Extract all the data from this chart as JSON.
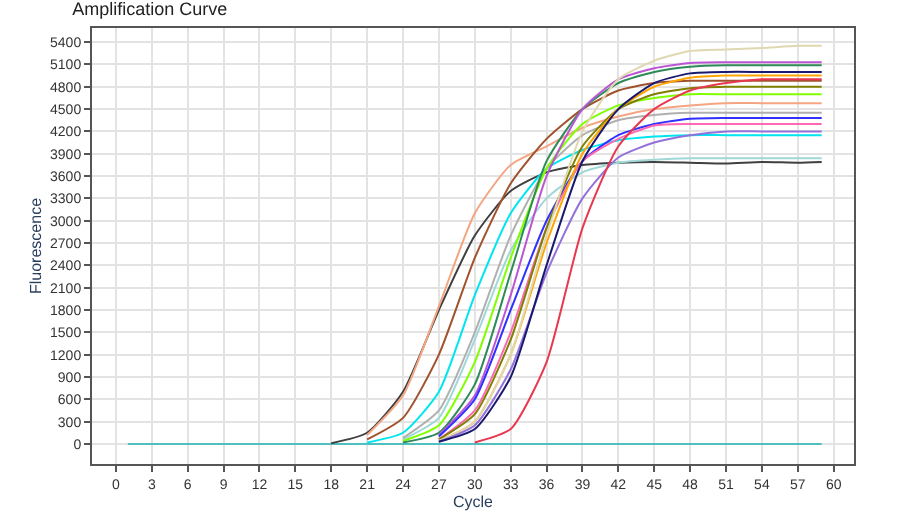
{
  "chart_data": {
    "type": "line",
    "title": "Amplification Curve",
    "xlabel": "Cycle",
    "ylabel": "Fluorescence",
    "x": [
      1,
      15,
      18,
      21,
      24,
      27,
      30,
      33,
      36,
      39,
      42,
      45,
      48,
      51,
      54,
      57,
      59
    ],
    "series": [
      {
        "color": "#4fbfbf",
        "values": [
          0,
          0,
          0,
          0,
          0,
          0,
          0,
          0,
          0,
          0,
          0,
          0,
          0,
          0,
          0,
          0,
          0
        ]
      },
      {
        "color": "#404040",
        "values": [
          null,
          null,
          10,
          150,
          700,
          1800,
          2800,
          3400,
          3650,
          3750,
          3780,
          3790,
          3780,
          3770,
          3790,
          3780,
          3790
        ]
      },
      {
        "color": "#f4a582",
        "values": [
          null,
          null,
          null,
          120,
          650,
          1850,
          3100,
          3750,
          4000,
          4250,
          4400,
          4500,
          4550,
          4580,
          4580,
          4580,
          4580
        ]
      },
      {
        "color": "#a0522d",
        "values": [
          null,
          null,
          null,
          60,
          350,
          1200,
          2500,
          3500,
          4100,
          4500,
          4750,
          4850,
          4880,
          4880,
          4880,
          4880,
          4880
        ]
      },
      {
        "color": "#00e5ee",
        "values": [
          null,
          null,
          null,
          20,
          150,
          700,
          2000,
          3100,
          3700,
          3950,
          4080,
          4130,
          4150,
          4150,
          4150,
          4150,
          4150
        ]
      },
      {
        "color": "#a0d8d8",
        "values": [
          null,
          null,
          null,
          null,
          60,
          350,
          1400,
          2600,
          3300,
          3650,
          3780,
          3820,
          3840,
          3840,
          3840,
          3840,
          3840
        ]
      },
      {
        "color": "#b0b0b0",
        "values": [
          null,
          null,
          null,
          null,
          80,
          450,
          1500,
          2800,
          3700,
          4150,
          4350,
          4420,
          4450,
          4450,
          4450,
          4450,
          4450
        ]
      },
      {
        "color": "#7fff00",
        "values": [
          null,
          null,
          null,
          null,
          40,
          250,
          1100,
          2500,
          3700,
          4300,
          4550,
          4650,
          4700,
          4700,
          4700,
          4700,
          4700
        ]
      },
      {
        "color": "#2e8b57",
        "values": [
          null,
          null,
          null,
          null,
          20,
          150,
          800,
          2300,
          3800,
          4500,
          4850,
          5000,
          5070,
          5090,
          5090,
          5090,
          5090
        ]
      },
      {
        "color": "#ba55d3",
        "values": [
          null,
          null,
          null,
          null,
          null,
          120,
          650,
          2000,
          3600,
          4500,
          4900,
          5050,
          5120,
          5130,
          5130,
          5130,
          5130
        ]
      },
      {
        "color": "#3030ff",
        "values": [
          null,
          null,
          null,
          null,
          null,
          100,
          600,
          1800,
          3000,
          3800,
          4150,
          4300,
          4370,
          4380,
          4380,
          4380,
          4380
        ]
      },
      {
        "color": "#ff69b4",
        "values": [
          null,
          null,
          null,
          null,
          null,
          60,
          450,
          1500,
          2900,
          3800,
          4100,
          4280,
          4300,
          4300,
          4300,
          4300,
          4300
        ]
      },
      {
        "color": "#808000",
        "values": [
          null,
          null,
          null,
          null,
          null,
          60,
          400,
          1400,
          2900,
          4000,
          4500,
          4700,
          4780,
          4800,
          4800,
          4800,
          4800
        ]
      },
      {
        "color": "#ffa500",
        "values": [
          null,
          null,
          null,
          null,
          null,
          40,
          300,
          1200,
          2700,
          3900,
          4500,
          4800,
          4920,
          4950,
          4950,
          4950,
          4950
        ]
      },
      {
        "color": "#e0d8b0",
        "values": [
          null,
          null,
          null,
          null,
          null,
          40,
          300,
          1200,
          2800,
          4200,
          4900,
          5150,
          5280,
          5300,
          5320,
          5350,
          5350
        ]
      },
      {
        "color": "#9370db",
        "values": [
          null,
          null,
          null,
          null,
          null,
          30,
          250,
          1000,
          2300,
          3300,
          3850,
          4050,
          4150,
          4200,
          4200,
          4200,
          4200
        ]
      },
      {
        "color": "#191970",
        "values": [
          null,
          null,
          null,
          null,
          null,
          30,
          200,
          900,
          2400,
          3800,
          4500,
          4850,
          4980,
          5000,
          5000,
          5000,
          5000
        ]
      },
      {
        "color": "#e8384f",
        "values": [
          null,
          null,
          null,
          null,
          null,
          null,
          20,
          200,
          1100,
          2900,
          4000,
          4500,
          4750,
          4850,
          4900,
          4900,
          4900
        ]
      }
    ],
    "xlim": [
      -2,
      61.7
    ],
    "ylim": [
      -270,
      5590
    ],
    "xticks": [
      0,
      3,
      6,
      9,
      12,
      15,
      18,
      21,
      24,
      27,
      30,
      33,
      36,
      39,
      42,
      45,
      48,
      51,
      54,
      57,
      60
    ],
    "yticks": [
      0,
      300,
      600,
      900,
      1200,
      1500,
      1800,
      2100,
      2400,
      2700,
      3000,
      3300,
      3600,
      3900,
      4200,
      4500,
      4800,
      5100,
      5400
    ],
    "grid": true,
    "marker": "none",
    "line_style": "solid"
  }
}
